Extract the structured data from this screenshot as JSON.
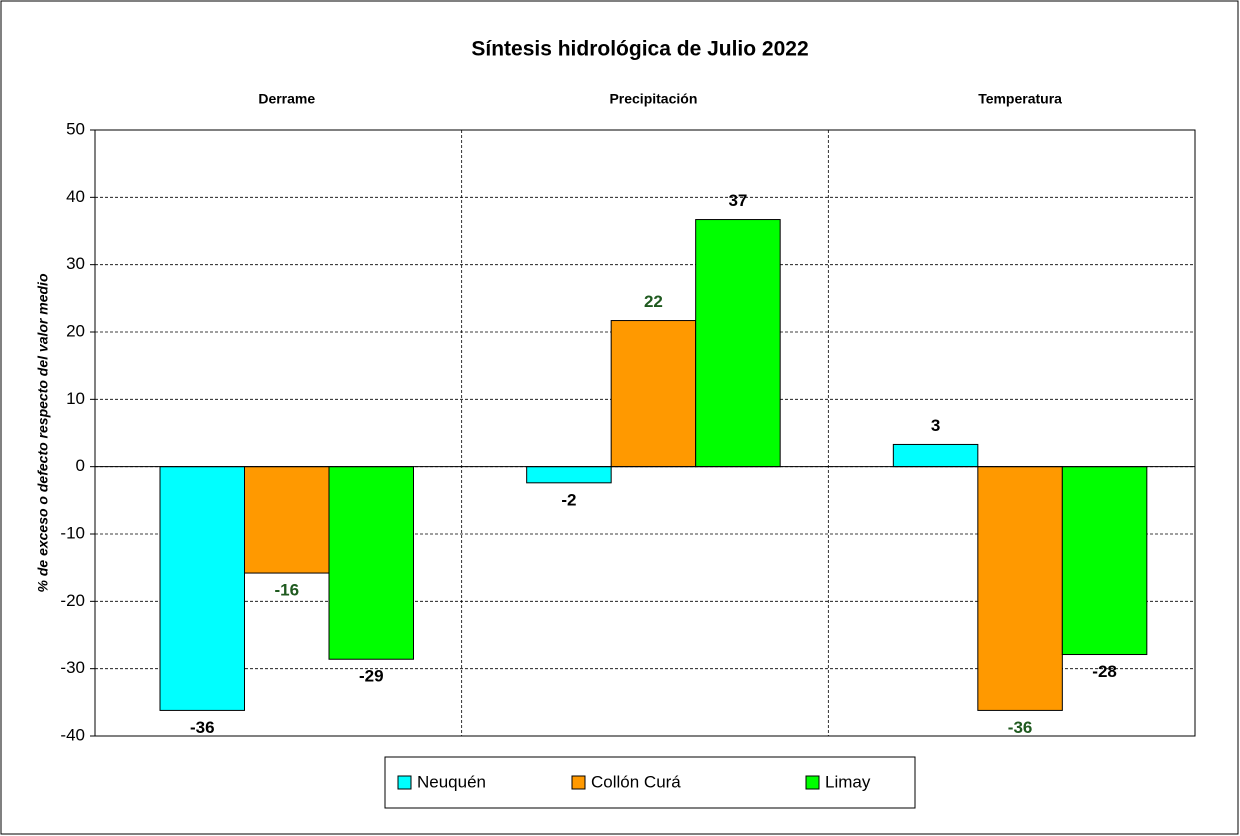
{
  "chart_data": {
    "type": "bar",
    "title": "Síntesis hidrológica de Julio 2022",
    "y_label": "% de exceso o defecto respecto del valor medio",
    "categories": [
      "Derrame",
      "Precipitación",
      "Temperatura"
    ],
    "series": [
      {
        "name": "Neuquén",
        "color": "#00ffff",
        "label_color": "#000000",
        "values": [
          -36.2,
          -2.4,
          3.3
        ],
        "value_labels": [
          "-36",
          "-2",
          "3"
        ]
      },
      {
        "name": "Collón Curá",
        "color": "#ff9900",
        "label_color": "#1f5a1f",
        "values": [
          -15.8,
          21.7,
          -36.2
        ],
        "value_labels": [
          "-16",
          "22",
          "-36"
        ]
      },
      {
        "name": "Limay",
        "color": "#00ff00",
        "label_color": "#000000",
        "values": [
          -28.6,
          36.7,
          -27.9
        ],
        "value_labels": [
          "-29",
          "37",
          "-28"
        ]
      }
    ],
    "ylim": [
      -40,
      50
    ],
    "yticks": [
      -40,
      -30,
      -20,
      -10,
      0,
      10,
      20,
      30,
      40,
      50
    ],
    "grid": true
  }
}
